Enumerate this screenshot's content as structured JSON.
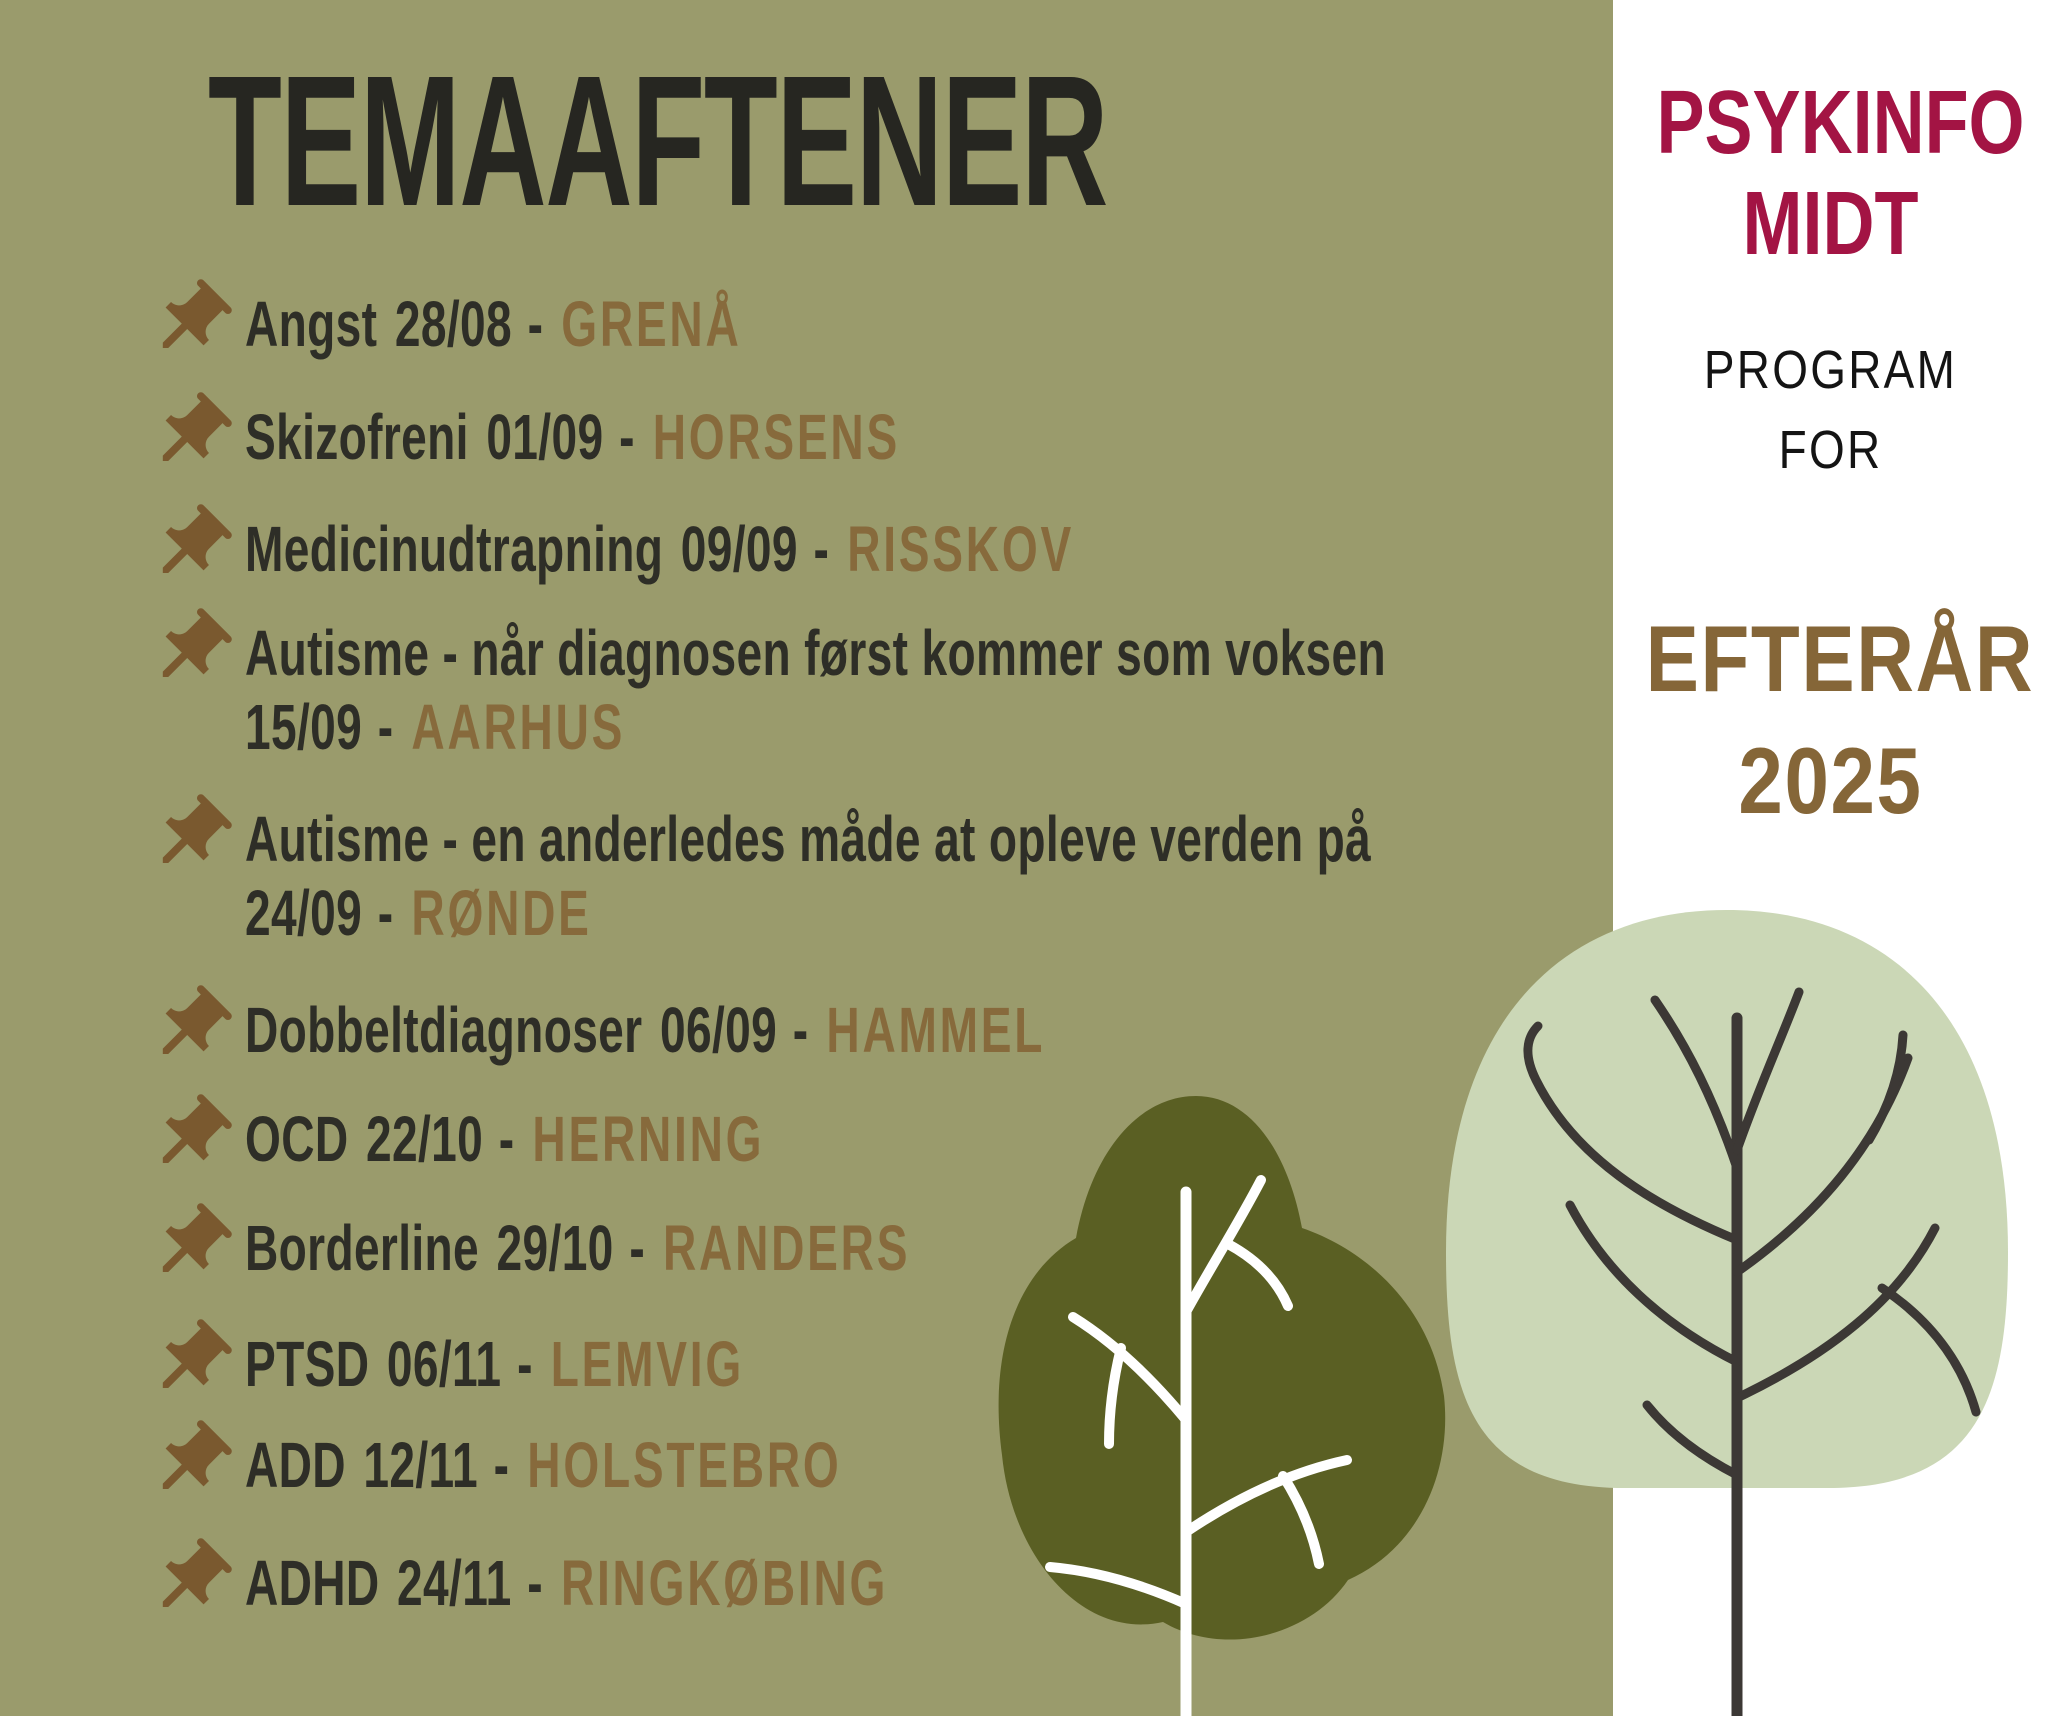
{
  "title": "TEMAAFTENER",
  "sidebar": {
    "brand": {
      "line1": "PSYKINFO",
      "line2": "MIDT"
    },
    "program": {
      "line1": "PROGRAM",
      "line2": "FOR"
    },
    "season": {
      "line1": "EFTERÅR",
      "line2": "2025"
    }
  },
  "events": [
    {
      "topic": "Angst",
      "date": "28/08",
      "separator": "-",
      "location": "GRENÅ",
      "two_lines": false
    },
    {
      "topic": "Skizofreni",
      "date": "01/09",
      "separator": "-",
      "location": "HORSENS",
      "two_lines": false
    },
    {
      "topic": "Medicinudtrapning",
      "date": "09/09",
      "separator": "-",
      "location": "RISSKOV",
      "two_lines": false
    },
    {
      "topic": "Autisme - når diagnosen først kommer som voksen",
      "date": "15/09",
      "separator": "-",
      "location": "AARHUS",
      "two_lines": true
    },
    {
      "topic": "Autisme - en anderledes måde at opleve verden på",
      "date": "24/09",
      "separator": "-",
      "location": "RØNDE",
      "two_lines": true
    },
    {
      "topic": "Dobbeltdiagnoser",
      "date": "06/09",
      "separator": "-",
      "location": "HAMMEL",
      "two_lines": false
    },
    {
      "topic": "OCD",
      "date": "22/10",
      "separator": "-",
      "location": "HERNING",
      "two_lines": false
    },
    {
      "topic": "Borderline",
      "date": "29/10",
      "separator": "-",
      "location": "RANDERS",
      "two_lines": false
    },
    {
      "topic": "PTSD",
      "date": "06/11",
      "separator": "-",
      "location": "LEMVIG",
      "two_lines": false
    },
    {
      "topic": "ADD",
      "date": "12/11",
      "separator": "-",
      "location": "HOLSTEBRO",
      "two_lines": false
    },
    {
      "topic": "ADHD",
      "date": "24/11",
      "separator": "-",
      "location": "RINGKØBING",
      "two_lines": false
    }
  ],
  "icons": {
    "bullet": "pushpin-icon"
  },
  "colors": {
    "background_olive": "#9a9b6c",
    "sidebar_white": "#ffffff",
    "title_text": "#262621",
    "body_text": "#2e2e27",
    "accent_brown": "#876a3c",
    "pin_brown": "#7a592f",
    "brand_crimson": "#a31444",
    "program_black": "#141414",
    "season_brown": "#856638",
    "left_tree_crown": "#5a5f23",
    "left_tree_branches": "#ffffff",
    "right_tree_crown": "#cbd7b6",
    "right_tree_branches": "#3c3835"
  }
}
